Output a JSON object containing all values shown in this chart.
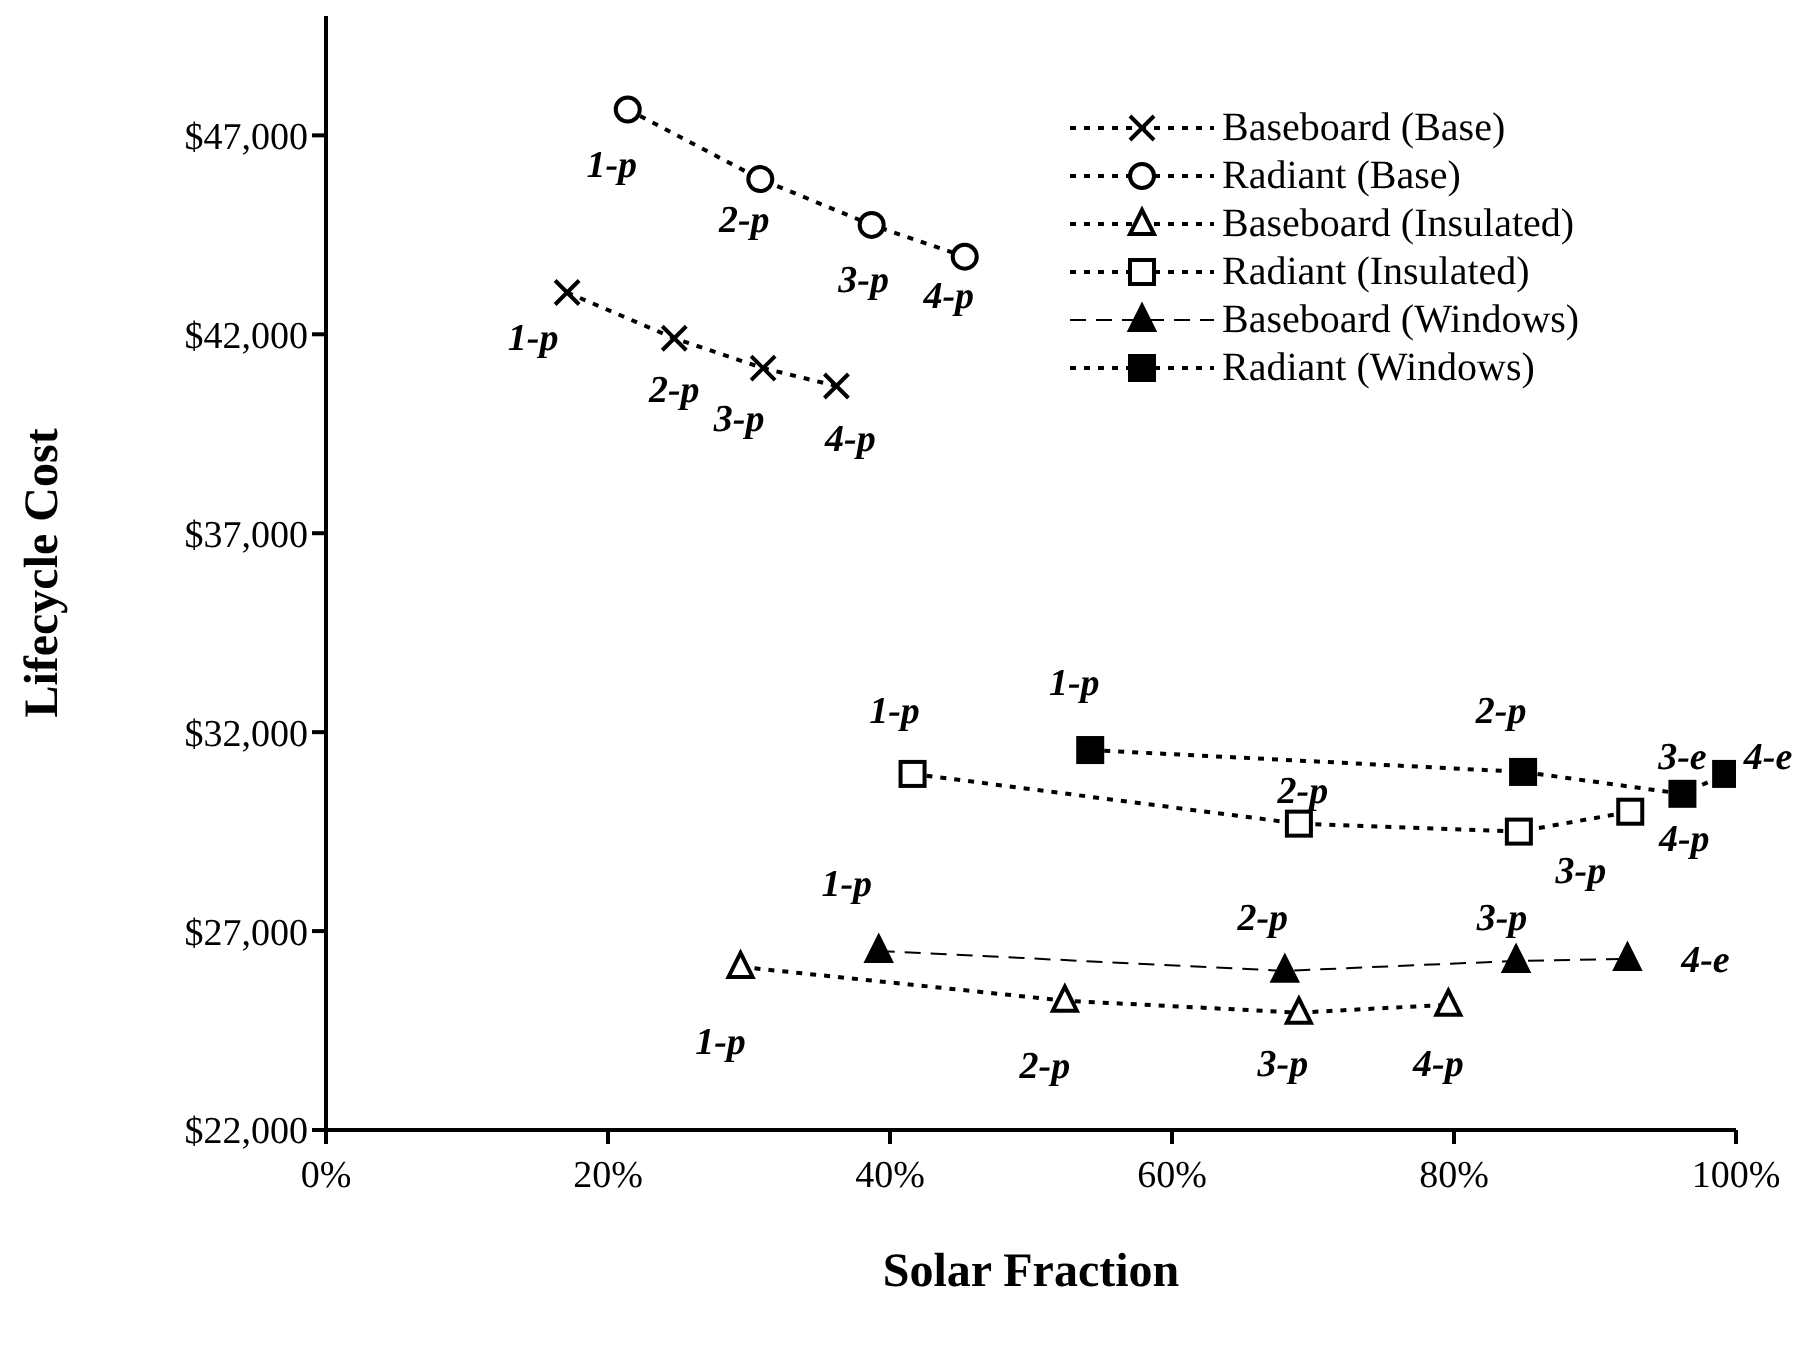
{
  "chart_data": {
    "type": "line",
    "xlabel": "Solar Fraction",
    "ylabel": "Lifecycle Cost",
    "xlim": [
      0,
      100
    ],
    "xticks": [
      {
        "value": 0,
        "label": "0%"
      },
      {
        "value": 20,
        "label": "20%"
      },
      {
        "value": 40,
        "label": "40%"
      },
      {
        "value": 60,
        "label": "60%"
      },
      {
        "value": 80,
        "label": "80%"
      },
      {
        "value": 100,
        "label": "100%"
      }
    ],
    "ylim": [
      22000,
      50000
    ],
    "yticks": [
      {
        "value": 22000,
        "label": "$22,000"
      },
      {
        "value": 27000,
        "label": "$27,000"
      },
      {
        "value": 32000,
        "label": "$32,000"
      },
      {
        "value": 37000,
        "label": "$37,000"
      },
      {
        "value": 42000,
        "label": "$42,000"
      },
      {
        "value": 47000,
        "label": "$47,000"
      }
    ],
    "legend": "top right",
    "series": [
      {
        "name": "Baseboard (Base)",
        "color": "#000000",
        "marker": "cross",
        "line_style": "dotted",
        "x": [
          17.1,
          24.7,
          31.0,
          36.2
        ],
        "values": [
          43050,
          41900,
          41150,
          40700
        ]
      },
      {
        "name": "Radiant (Base)",
        "color": "#000000",
        "marker": "circle",
        "line_style": "dotted",
        "x": [
          21.4,
          30.8,
          38.7,
          45.3
        ],
        "values": [
          47650,
          45900,
          44750,
          43950
        ]
      },
      {
        "name": "Baseboard (Insulated)",
        "color": "#000000",
        "marker": "triangle",
        "line_style": "dotted",
        "x": [
          29.4,
          52.4,
          69.0,
          79.6
        ],
        "values": [
          26100,
          25250,
          24950,
          25150
        ]
      },
      {
        "name": "Radiant (Insulated)",
        "color": "#000000",
        "marker": "square",
        "line_style": "dotted",
        "x": [
          41.6,
          69.0,
          84.6,
          92.5
        ],
        "values": [
          30950,
          29700,
          29500,
          30000
        ]
      },
      {
        "name": "Baseboard (Windows)",
        "color": "#000000",
        "marker": "triangle",
        "line_style": "dashed",
        "x": [
          39.2,
          68.0,
          84.4,
          92.3
        ],
        "values": [
          26500,
          26000,
          26250,
          26300
        ]
      },
      {
        "name": "Radiant (Windows)",
        "color": "#000000",
        "marker": "square",
        "line_style": "dotted",
        "x": [
          54.2,
          84.9,
          96.2,
          99.3
        ],
        "values": [
          31550,
          31000,
          30450,
          30950
        ]
      }
    ],
    "annotations": [
      {
        "text": "1-p",
        "x": 17.1,
        "y": 43050
      },
      {
        "text": "2-p",
        "x": 24.7,
        "y": 41900
      },
      {
        "text": "3-p",
        "x": 31.0,
        "y": 41150
      },
      {
        "text": "4-p",
        "x": 36.2,
        "y": 40700
      },
      {
        "text": "1-p",
        "x": 21.4,
        "y": 47650
      },
      {
        "text": "2-p",
        "x": 30.8,
        "y": 45900
      },
      {
        "text": "3-p",
        "x": 38.7,
        "y": 44750
      },
      {
        "text": "4-p",
        "x": 45.3,
        "y": 43950
      },
      {
        "text": "1-p",
        "x": 29.4,
        "y": 26100
      },
      {
        "text": "2-p",
        "x": 52.4,
        "y": 25250
      },
      {
        "text": "3-p",
        "x": 69.0,
        "y": 24950
      },
      {
        "text": "4-p",
        "x": 79.6,
        "y": 25150
      },
      {
        "text": "1-p",
        "x": 41.6,
        "y": 30950
      },
      {
        "text": "2-p",
        "x": 69.0,
        "y": 29700
      },
      {
        "text": "3-p",
        "x": 84.6,
        "y": 29500
      },
      {
        "text": "4-p",
        "x": 92.5,
        "y": 30000
      },
      {
        "text": "1-p",
        "x": 39.2,
        "y": 26500
      },
      {
        "text": "2-p",
        "x": 68.0,
        "y": 26000
      },
      {
        "text": "3-p",
        "x": 84.4,
        "y": 26250
      },
      {
        "text": "4-e",
        "x": 92.3,
        "y": 26300
      },
      {
        "text": "1-p",
        "x": 54.2,
        "y": 31550
      },
      {
        "text": "2-p",
        "x": 84.9,
        "y": 31000
      },
      {
        "text": "3-e",
        "x": 96.2,
        "y": 30450
      },
      {
        "text": "4-e",
        "x": 99.3,
        "y": 30950
      }
    ]
  }
}
